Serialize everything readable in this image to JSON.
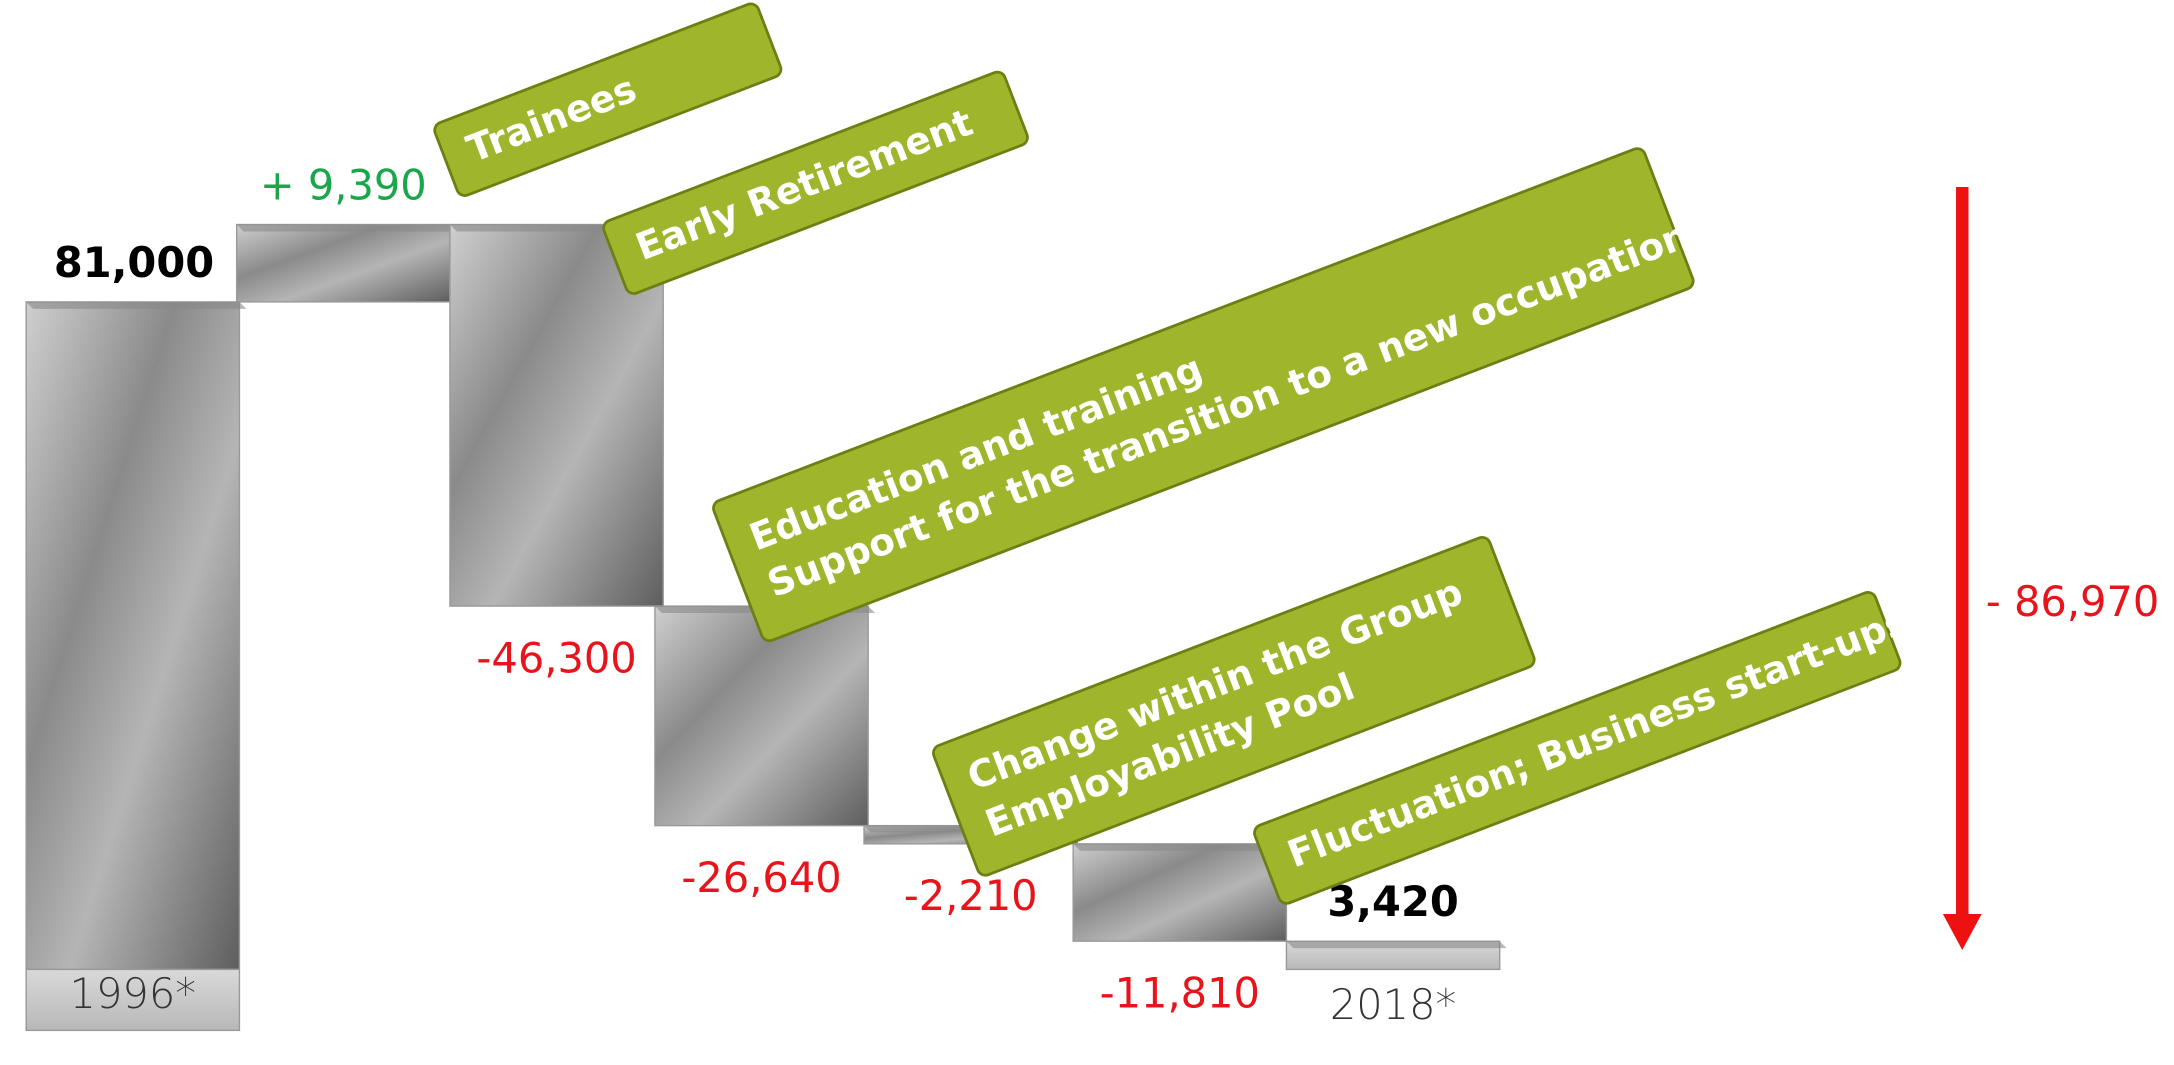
{
  "chart_data": {
    "type": "waterfall",
    "categories": [
      "1996*",
      null,
      null,
      null,
      null,
      null,
      "2018*"
    ],
    "values": [
      81000,
      9390,
      -46300,
      -26640,
      -2210,
      -11810,
      3420
    ],
    "value_labels": [
      "81,000",
      "+ 9,390",
      "-46,300",
      "-26,640",
      "-2,210",
      "-11,810",
      "3,420"
    ],
    "total_value": -86970,
    "total_label": "- 86,970",
    "colors": {
      "total": "#000000",
      "increase": "#1aa64a",
      "decrease": "#e8141b",
      "arrow": "#ee1111",
      "annotation": "#9fb52b"
    },
    "annotations": [
      [
        "Trainees"
      ],
      [
        "Early Retirement"
      ],
      [
        "Education and training",
        "Support for the transition to a new occupation"
      ],
      [
        "Change within the Group",
        "Employability Pool"
      ],
      [
        "Fluctuation; Business start-ups"
      ]
    ]
  }
}
